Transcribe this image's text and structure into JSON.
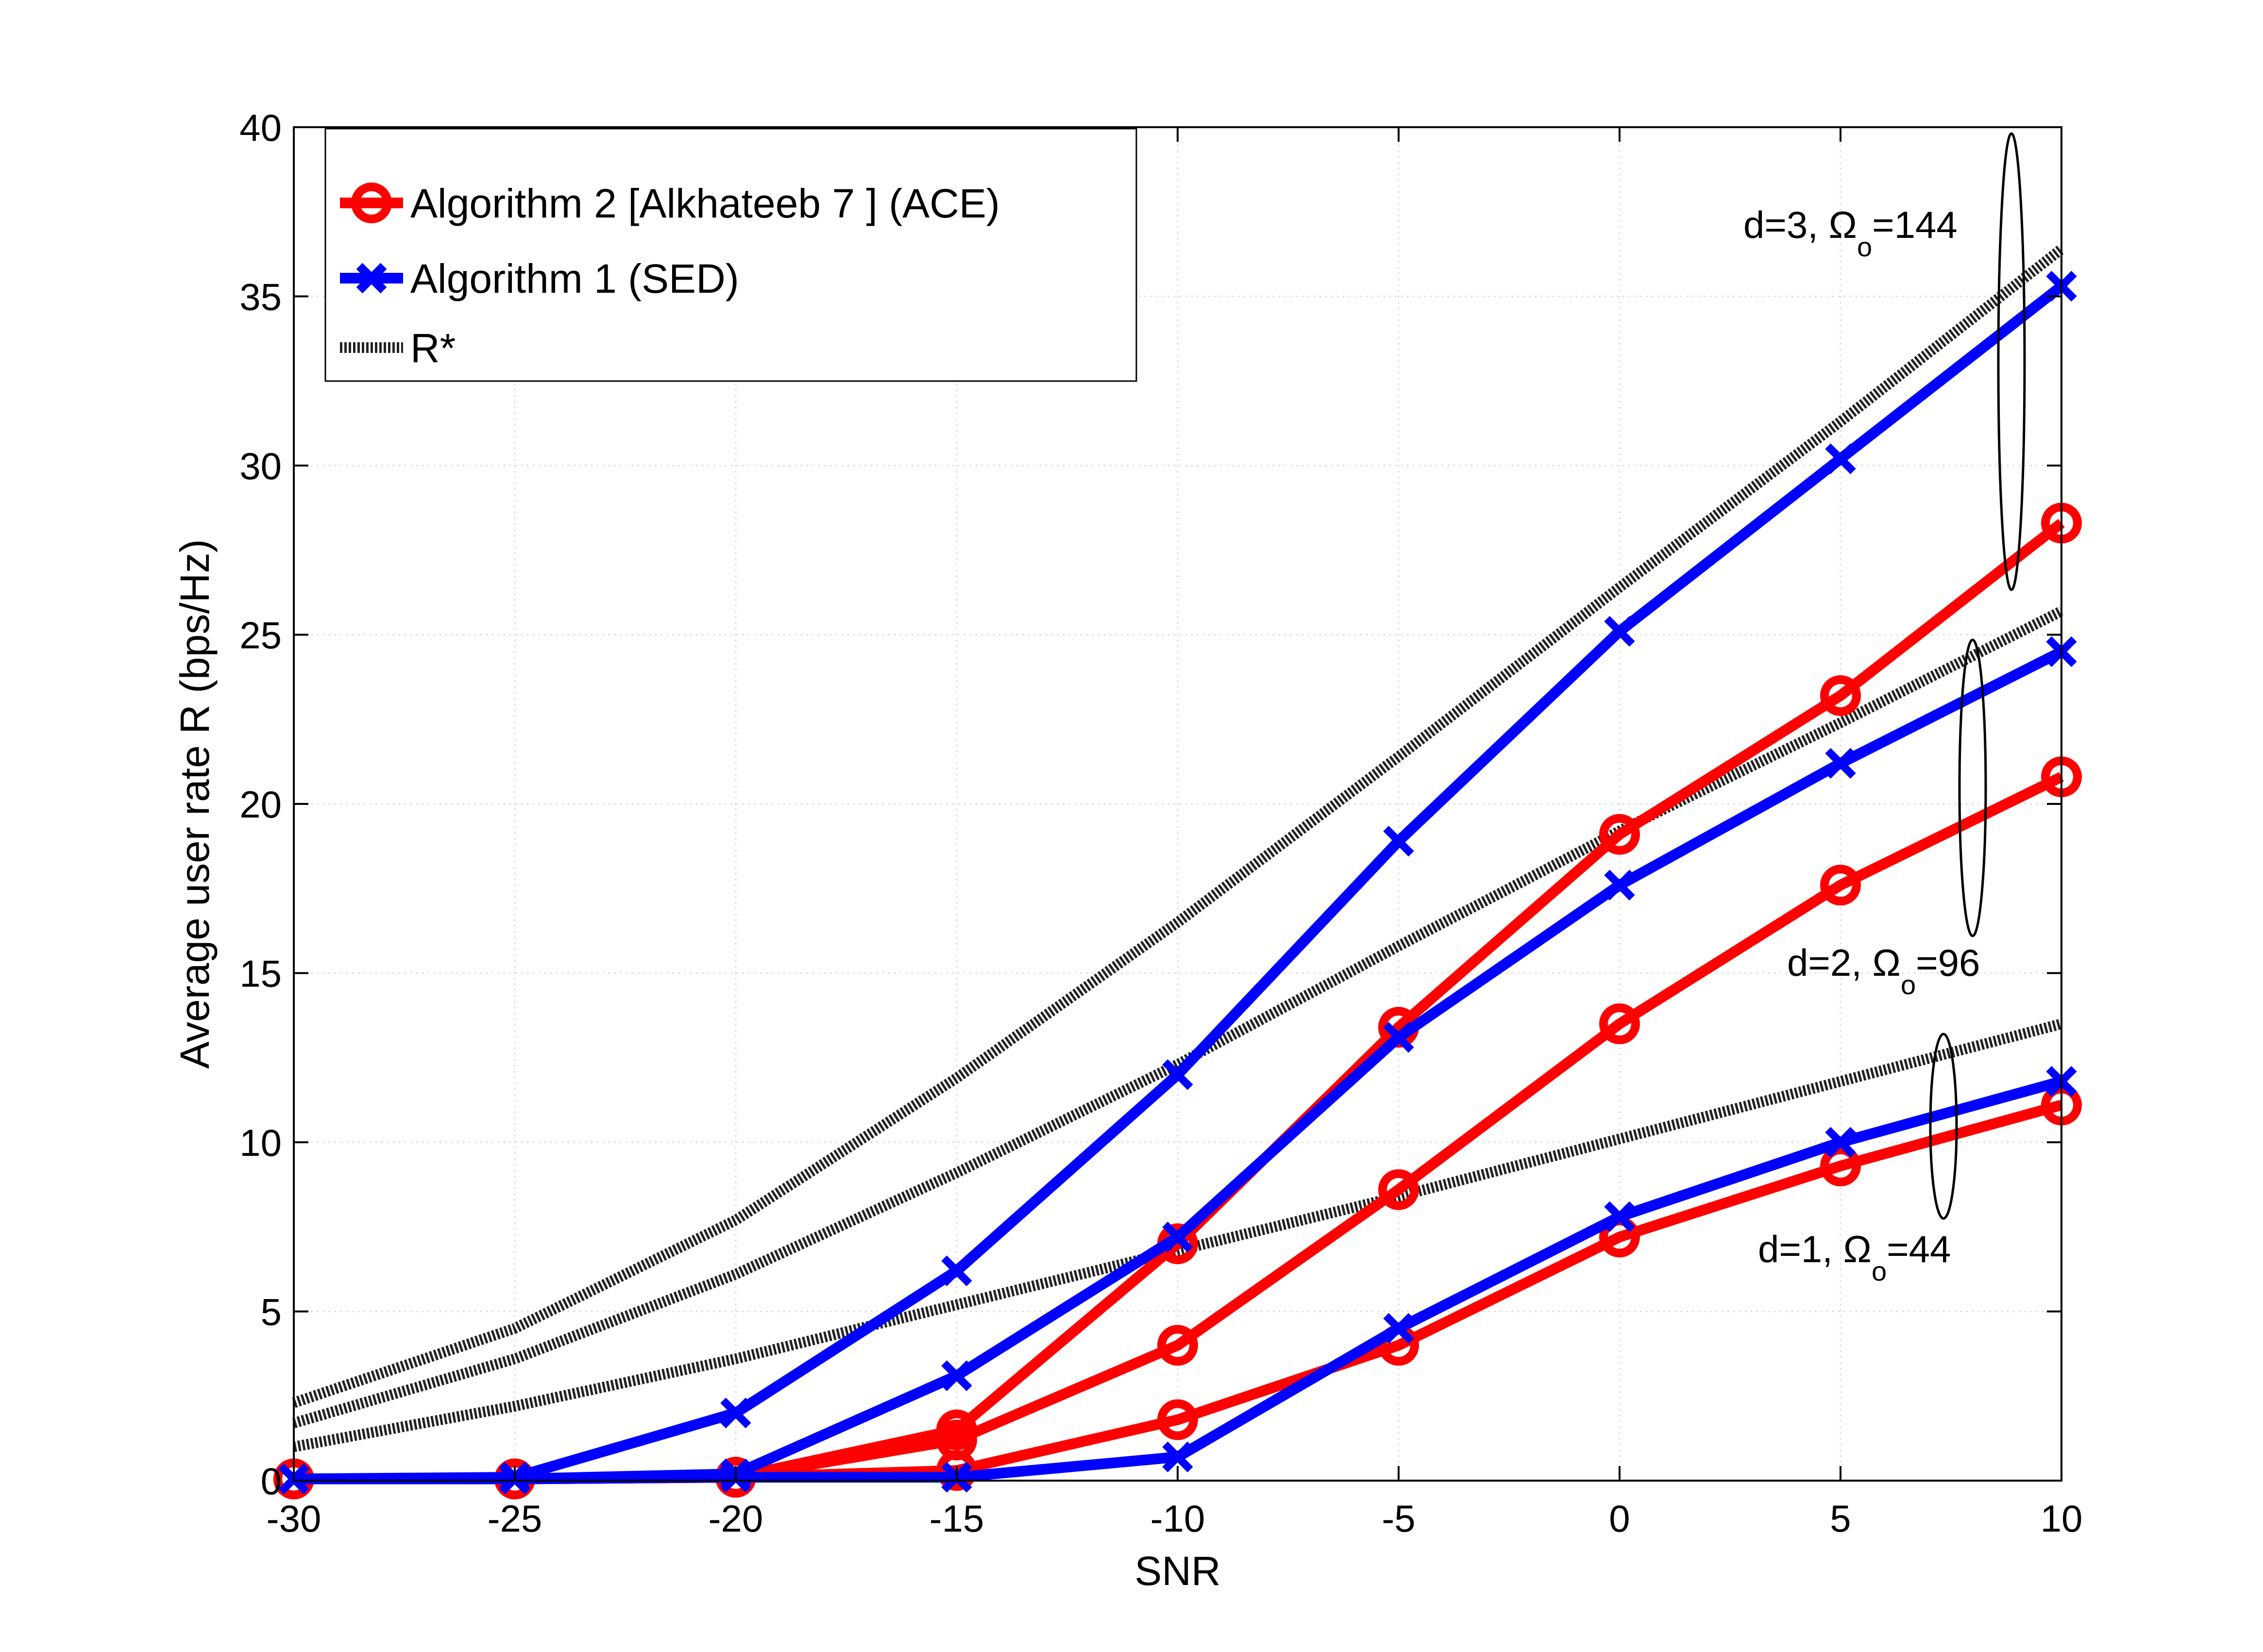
{
  "chart_data": {
    "type": "line",
    "title": "",
    "xlabel": "SNR",
    "ylabel": "Average user rate R (bps/Hz)",
    "xlim": [
      -30,
      10
    ],
    "ylim": [
      0,
      40
    ],
    "xticks": [
      -30,
      -25,
      -20,
      -15,
      -10,
      -5,
      0,
      5,
      10
    ],
    "yticks": [
      0,
      5,
      10,
      15,
      20,
      25,
      30,
      35,
      40
    ],
    "grid": true,
    "legend_position": "top-left",
    "x": [
      -30,
      -25,
      -20,
      -15,
      -10,
      -5,
      0,
      5,
      10
    ],
    "legend": [
      {
        "label": "Algorithm 2 [Alkhateeb  7 ] (ACE)",
        "color": "#ff0000",
        "marker": "circle"
      },
      {
        "label": "Algorithm  1 (SED)",
        "color": "#0000ff",
        "marker": "x"
      },
      {
        "label": "R*",
        "color": "#222222",
        "marker": "none"
      }
    ],
    "series": [
      {
        "name": "R* d=3",
        "group": "R*",
        "values": [
          2.3,
          4.5,
          7.7,
          11.9,
          16.5,
          21.4,
          26.4,
          31.3,
          36.4
        ]
      },
      {
        "name": "R* d=2",
        "group": "R*",
        "values": [
          1.7,
          3.6,
          6.1,
          9.1,
          12.3,
          15.8,
          19.2,
          22.4,
          25.7
        ]
      },
      {
        "name": "R* d=1",
        "group": "R*",
        "values": [
          1.0,
          2.2,
          3.6,
          5.2,
          6.8,
          8.4,
          10.1,
          11.8,
          13.5
        ]
      },
      {
        "name": "ACE d=3",
        "group": "ACE",
        "values": [
          0.05,
          0.05,
          0.1,
          1.5,
          7.0,
          13.4,
          19.1,
          23.2,
          28.3
        ]
      },
      {
        "name": "ACE d=2",
        "group": "ACE",
        "values": [
          0.05,
          0.05,
          0.1,
          1.2,
          4.0,
          8.6,
          13.5,
          17.6,
          20.8
        ]
      },
      {
        "name": "ACE d=1",
        "group": "ACE",
        "values": [
          0.05,
          0.05,
          0.1,
          0.3,
          1.8,
          4.0,
          7.2,
          9.3,
          11.1
        ]
      },
      {
        "name": "SED d=3",
        "group": "SED",
        "values": [
          0.05,
          0.1,
          2.0,
          6.2,
          12.0,
          18.9,
          25.1,
          30.2,
          35.3
        ]
      },
      {
        "name": "SED d=2",
        "group": "SED",
        "values": [
          0.05,
          0.05,
          0.2,
          3.1,
          7.2,
          13.1,
          17.6,
          21.2,
          24.5
        ]
      },
      {
        "name": "SED d=1",
        "group": "SED",
        "values": [
          0.05,
          0.05,
          0.1,
          0.1,
          0.7,
          4.5,
          7.8,
          10.0,
          11.8
        ]
      }
    ],
    "annotations": [
      {
        "main": "d=3, Ω",
        "sub": "o",
        "tail": "=144"
      },
      {
        "main": "d=2, Ω",
        "sub": "o",
        "tail": "=96"
      },
      {
        "main": "d=1, Ω",
        "sub": "o",
        "tail": "=44"
      }
    ]
  },
  "colors": {
    "ace": "#ff0000",
    "sed": "#0000ff",
    "rstar": "#222222",
    "grid": "#d9d9d9"
  }
}
